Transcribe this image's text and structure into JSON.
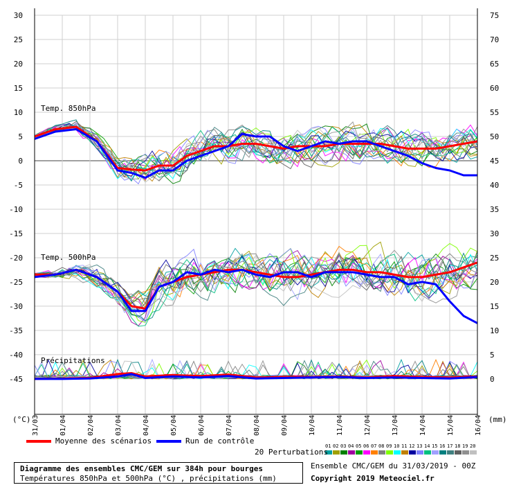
{
  "chart_data": {
    "type": "line",
    "left_axis": {
      "unit": "(°C)",
      "ticks": [
        "30",
        "25",
        "20",
        "15",
        "10",
        "5",
        "0",
        "-5",
        "-10",
        "-15",
        "-20",
        "-25",
        "-30",
        "-35",
        "-40",
        "-45"
      ]
    },
    "right_axis": {
      "unit": "(mm)",
      "ticks": [
        "75",
        "70",
        "65",
        "60",
        "55",
        "50",
        "45",
        "40",
        "35",
        "30",
        "25",
        "20",
        "15",
        "10",
        "5",
        "0"
      ]
    },
    "x_tick_labels": [
      "31/03",
      "01/04",
      "02/04",
      "03/04",
      "04/04",
      "05/04",
      "06/04",
      "07/04",
      "08/04",
      "09/04",
      "10/04",
      "11/04",
      "12/04",
      "13/04",
      "14/04",
      "15/04",
      "16/04"
    ],
    "x_hours_max": 384,
    "panel_labels": {
      "t850": "Temp. 850hPa",
      "t500": "Temp. 500hPa",
      "precip": "Précipitations"
    },
    "series": [
      {
        "name": "Moyenne des scénarios",
        "color": "#ff0000",
        "panel": "t850",
        "x": [
          0,
          18,
          36,
          54,
          72,
          84,
          96,
          108,
          120,
          132,
          144,
          156,
          168,
          180,
          192,
          204,
          216,
          228,
          240,
          252,
          264,
          276,
          288,
          300,
          312,
          324,
          336,
          348,
          360,
          372,
          384
        ],
        "values": [
          5,
          6.5,
          7,
          4,
          -1.5,
          -1.8,
          -2,
          -1,
          -1,
          1,
          2,
          3,
          3,
          3.5,
          3.5,
          3,
          2.5,
          3,
          3,
          3,
          3.5,
          3.5,
          3.5,
          3.5,
          3,
          2.5,
          2.5,
          2.5,
          3,
          3.5,
          4
        ]
      },
      {
        "name": "Run de contrôle",
        "color": "#0000ff",
        "panel": "t850",
        "x": [
          0,
          18,
          36,
          54,
          72,
          84,
          96,
          108,
          120,
          132,
          144,
          156,
          168,
          180,
          192,
          204,
          216,
          228,
          240,
          252,
          264,
          276,
          288,
          300,
          312,
          324,
          336,
          348,
          360,
          372,
          384
        ],
        "values": [
          4.5,
          6,
          6.5,
          4,
          -2,
          -2.5,
          -3.5,
          -2,
          -2,
          0,
          1,
          2,
          3,
          5.5,
          5,
          5,
          3,
          2,
          3,
          4,
          3.5,
          4,
          4,
          3,
          2,
          1,
          -0.5,
          -1.5,
          -2,
          -3,
          -3
        ]
      },
      {
        "name": "Moyenne des scénarios",
        "color": "#ff0000",
        "panel": "t500",
        "x": [
          0,
          18,
          36,
          54,
          72,
          84,
          96,
          108,
          120,
          132,
          144,
          156,
          168,
          180,
          192,
          204,
          216,
          228,
          240,
          252,
          264,
          276,
          288,
          300,
          312,
          324,
          336,
          348,
          360,
          372,
          384
        ],
        "values": [
          -23.5,
          -23.5,
          -22.5,
          -24,
          -27,
          -30,
          -30.5,
          -26,
          -25,
          -24,
          -23.5,
          -23,
          -22.5,
          -22.5,
          -23,
          -23.5,
          -24,
          -24,
          -23.5,
          -23,
          -22.5,
          -22.5,
          -23,
          -23,
          -23.5,
          -24,
          -24,
          -23.5,
          -23,
          -22,
          -21
        ]
      },
      {
        "name": "Run de contrôle",
        "color": "#0000ff",
        "panel": "t500",
        "x": [
          0,
          18,
          36,
          54,
          72,
          84,
          96,
          108,
          120,
          132,
          144,
          156,
          168,
          180,
          192,
          204,
          216,
          228,
          240,
          252,
          264,
          276,
          288,
          300,
          312,
          324,
          336,
          348,
          360,
          372,
          384
        ],
        "values": [
          -24,
          -23.5,
          -22.5,
          -24,
          -27,
          -31,
          -31,
          -26,
          -25,
          -23,
          -23.5,
          -22.5,
          -23,
          -22.5,
          -23.5,
          -24,
          -23,
          -23,
          -24,
          -23,
          -23,
          -23,
          -23.5,
          -24,
          -24,
          -25.5,
          -25,
          -25.5,
          -29,
          -32,
          -33.5
        ]
      },
      {
        "name": "Moyenne des scénarios",
        "color": "#ff0000",
        "panel": "precip",
        "x": [
          0,
          24,
          48,
          72,
          84,
          96,
          120,
          144,
          168,
          192,
          216,
          240,
          264,
          288,
          312,
          336,
          360,
          384
        ],
        "values": [
          0,
          0.1,
          0.2,
          1,
          1.2,
          0.5,
          0.8,
          0.6,
          0.9,
          0.3,
          0.4,
          0.4,
          0.5,
          0.3,
          0.6,
          0.4,
          0.3,
          0.5
        ]
      },
      {
        "name": "Run de contrôle",
        "color": "#0000ff",
        "panel": "precip",
        "x": [
          0,
          24,
          48,
          72,
          84,
          96,
          120,
          144,
          168,
          192,
          216,
          240,
          264,
          288,
          312,
          336,
          360,
          384
        ],
        "values": [
          0,
          0,
          0.1,
          0.5,
          1,
          0.2,
          0.5,
          0.3,
          0.6,
          0.1,
          0.2,
          0.3,
          0.4,
          0.2,
          0.3,
          0.2,
          0.1,
          0.4
        ]
      }
    ],
    "perturbation_colors": [
      "#00a0a0",
      "#a0a000",
      "#008000",
      "#a000a0",
      "#00a000",
      "#ff00ff",
      "#ff8000",
      "#808080",
      "#80ff00",
      "#00ffff",
      "#c08000",
      "#0000a0",
      "#8080ff",
      "#00c080",
      "#a0a0ff",
      "#008080",
      "#408080",
      "#606060",
      "#909090",
      "#c0c0c0"
    ]
  },
  "legend": {
    "mean_label": "Moyenne des scénarios",
    "control_label": "Run de contrôle",
    "perturbations_label": "20 Perturbations",
    "perturbation_numbers": [
      "01",
      "02",
      "03",
      "04",
      "05",
      "06",
      "07",
      "08",
      "09",
      "10",
      "11",
      "12",
      "13",
      "14",
      "15",
      "16",
      "17",
      "18",
      "19",
      "20"
    ]
  },
  "footer": {
    "title": "Diagramme des ensembles CMC/GEM sur 384h pour bourges",
    "subtitle": "Températures 850hPa et 500hPa (°C) , précipitations (mm)",
    "run_info": "Ensemble CMC/GEM du 31/03/2019 - 00Z",
    "copyright": "Copyright 2019 Meteociel.fr"
  }
}
